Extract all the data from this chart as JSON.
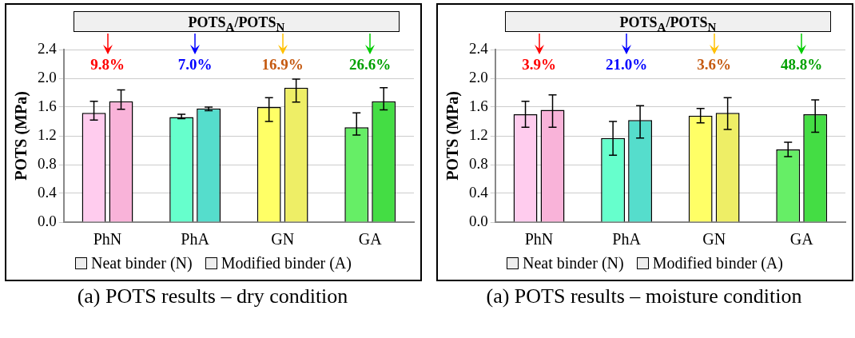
{
  "chart_data": [
    {
      "type": "bar",
      "ylabel": "POTS (MPa)",
      "categories": [
        "PhN",
        "PhA",
        "GN",
        "GA"
      ],
      "ylim": [
        0,
        2.4
      ],
      "yticks": [
        {
          "value": 0,
          "label": "0.0"
        },
        {
          "value": 0.4,
          "label": "0.4"
        },
        {
          "value": 0.8,
          "label": "0.8"
        },
        {
          "value": 1.2,
          "label": "1.2"
        },
        {
          "value": 1.6,
          "label": "1.6"
        },
        {
          "value": 2.0,
          "label": "2.0"
        },
        {
          "value": 2.4,
          "label": "2.4"
        }
      ],
      "grid": "y",
      "legend": "bottom",
      "series": [
        {
          "name": "Neat binder (N)",
          "colors": [
            "#ffccee",
            "#66ffcc",
            "#ffff66",
            "#66ee66"
          ],
          "values": [
            1.52,
            1.46,
            1.6,
            1.32
          ],
          "errors": [
            [
              1.42,
              1.68
            ],
            [
              1.44,
              1.5
            ],
            [
              1.4,
              1.73
            ],
            [
              1.21,
              1.52
            ]
          ]
        },
        {
          "name": "Modified binder (A)",
          "colors": [
            "#f9b3d9",
            "#55ddcc",
            "#eeee66",
            "#44dd44"
          ],
          "values": [
            1.68,
            1.58,
            1.87,
            1.68
          ],
          "errors": [
            [
              1.57,
              1.84
            ],
            [
              1.55,
              1.6
            ],
            [
              1.67,
              1.99
            ],
            [
              1.56,
              1.87
            ]
          ]
        }
      ],
      "annotations": [
        "POTS$_{A}$/POTS$_{N}$",
        "9.8%",
        "7.0%",
        "16.9%",
        "26.6%",
        "(a) POTS results – dry condition"
      ]
    },
    {
      "type": "bar",
      "ylabel": "POTS (MPa)",
      "categories": [
        "PhN",
        "PhA",
        "GN",
        "GA"
      ],
      "ylim": [
        0,
        2.4
      ],
      "yticks": [
        {
          "value": 0,
          "label": "0.0"
        },
        {
          "value": 0.4,
          "label": "0.4"
        },
        {
          "value": 0.8,
          "label": "0.8"
        },
        {
          "value": 1.2,
          "label": "1.2"
        },
        {
          "value": 1.6,
          "label": "1.6"
        },
        {
          "value": 2.0,
          "label": "2.0"
        },
        {
          "value": 2.4,
          "label": "2.4"
        }
      ],
      "grid": "y",
      "legend": "bottom",
      "series": [
        {
          "name": "Neat binder (N)",
          "colors": [
            "#ffccee",
            "#66ffcc",
            "#ffff66",
            "#66ee66"
          ],
          "values": [
            1.5,
            1.17,
            1.48,
            1.01
          ],
          "errors": [
            [
              1.32,
              1.68
            ],
            [
              0.93,
              1.4
            ],
            [
              1.38,
              1.58
            ],
            [
              0.91,
              1.11
            ]
          ]
        },
        {
          "name": "Modified binder (A)",
          "colors": [
            "#f9b3d9",
            "#55ddcc",
            "#eeee66",
            "#44dd44"
          ],
          "values": [
            1.56,
            1.42,
            1.52,
            1.5
          ],
          "errors": [
            [
              1.32,
              1.77
            ],
            [
              1.17,
              1.62
            ],
            [
              1.29,
              1.73
            ],
            [
              1.25,
              1.7
            ]
          ]
        }
      ],
      "annotations": [
        "POTS$_{A}$/POTS$_{N}$",
        "3.9%",
        "21.0%",
        "3.6%",
        "48.8%",
        "(a) POTS results – moisture condition"
      ]
    }
  ]
}
